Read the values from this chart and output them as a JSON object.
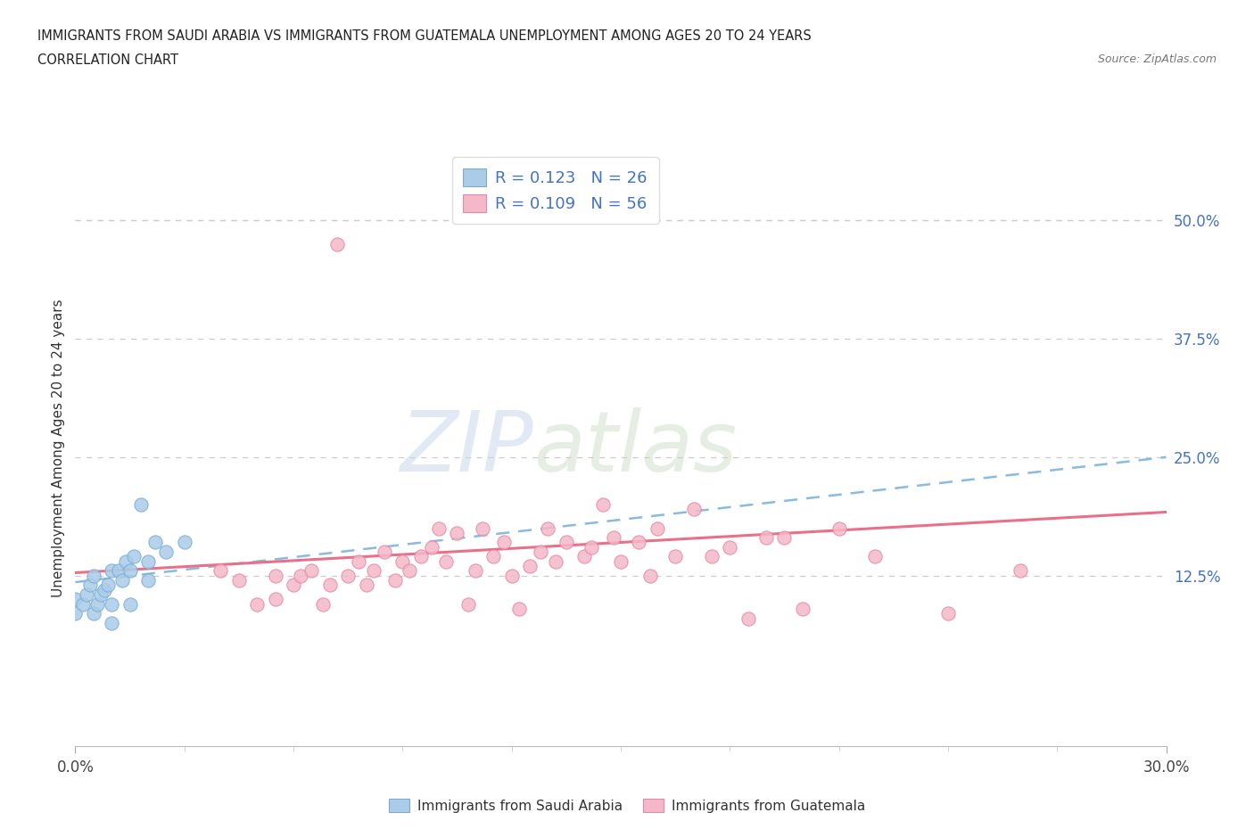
{
  "title_line1": "IMMIGRANTS FROM SAUDI ARABIA VS IMMIGRANTS FROM GUATEMALA UNEMPLOYMENT AMONG AGES 20 TO 24 YEARS",
  "title_line2": "CORRELATION CHART",
  "source_text": "Source: ZipAtlas.com",
  "ylabel": "Unemployment Among Ages 20 to 24 years",
  "xlim": [
    0.0,
    0.3
  ],
  "ylim": [
    -0.055,
    0.575
  ],
  "ytick_positions": [
    0.125,
    0.25,
    0.375,
    0.5
  ],
  "ytick_labels": [
    "12.5%",
    "25.0%",
    "37.5%",
    "50.0%"
  ],
  "saudi_color": "#aacce8",
  "saudi_edge_color": "#7aadd4",
  "guatemala_color": "#f4b8c8",
  "guatemala_edge_color": "#e888a8",
  "trend_saudi_color": "#88bbdd",
  "trend_guatemala_color": "#e8708a",
  "legend_saudi_label": "R = 0.123   N = 26",
  "legend_guatemala_label": "R = 0.109   N = 56",
  "legend_title_saudi": "Immigrants from Saudi Arabia",
  "legend_title_guatemala": "Immigrants from Guatemala",
  "watermark_zip": "ZIP",
  "watermark_atlas": "atlas",
  "saudi_x": [
    0.0,
    0.0,
    0.002,
    0.003,
    0.004,
    0.005,
    0.005,
    0.006,
    0.007,
    0.008,
    0.009,
    0.01,
    0.01,
    0.01,
    0.012,
    0.013,
    0.014,
    0.015,
    0.015,
    0.016,
    0.018,
    0.02,
    0.02,
    0.022,
    0.025,
    0.03
  ],
  "saudi_y": [
    0.1,
    0.085,
    0.095,
    0.105,
    0.115,
    0.125,
    0.085,
    0.095,
    0.105,
    0.11,
    0.115,
    0.13,
    0.095,
    0.075,
    0.13,
    0.12,
    0.14,
    0.13,
    0.095,
    0.145,
    0.2,
    0.14,
    0.12,
    0.16,
    0.15,
    0.16
  ],
  "guatemala_x": [
    0.04,
    0.045,
    0.05,
    0.055,
    0.055,
    0.06,
    0.062,
    0.065,
    0.068,
    0.07,
    0.072,
    0.075,
    0.078,
    0.08,
    0.082,
    0.085,
    0.088,
    0.09,
    0.092,
    0.095,
    0.098,
    0.1,
    0.102,
    0.105,
    0.108,
    0.11,
    0.112,
    0.115,
    0.118,
    0.12,
    0.122,
    0.125,
    0.128,
    0.13,
    0.132,
    0.135,
    0.14,
    0.142,
    0.145,
    0.148,
    0.15,
    0.155,
    0.158,
    0.16,
    0.165,
    0.17,
    0.175,
    0.18,
    0.185,
    0.19,
    0.195,
    0.2,
    0.21,
    0.22,
    0.24,
    0.26
  ],
  "guatemala_y": [
    0.13,
    0.12,
    0.095,
    0.1,
    0.125,
    0.115,
    0.125,
    0.13,
    0.095,
    0.115,
    0.475,
    0.125,
    0.14,
    0.115,
    0.13,
    0.15,
    0.12,
    0.14,
    0.13,
    0.145,
    0.155,
    0.175,
    0.14,
    0.17,
    0.095,
    0.13,
    0.175,
    0.145,
    0.16,
    0.125,
    0.09,
    0.135,
    0.15,
    0.175,
    0.14,
    0.16,
    0.145,
    0.155,
    0.2,
    0.165,
    0.14,
    0.16,
    0.125,
    0.175,
    0.145,
    0.195,
    0.145,
    0.155,
    0.08,
    0.165,
    0.165,
    0.09,
    0.175,
    0.145,
    0.085,
    0.13
  ],
  "trend_saudi_x0": 0.0,
  "trend_saudi_y0": 0.118,
  "trend_saudi_x1": 0.3,
  "trend_saudi_y1": 0.25,
  "trend_guat_x0": 0.0,
  "trend_guat_y0": 0.128,
  "trend_guat_x1": 0.3,
  "trend_guat_y1": 0.192
}
